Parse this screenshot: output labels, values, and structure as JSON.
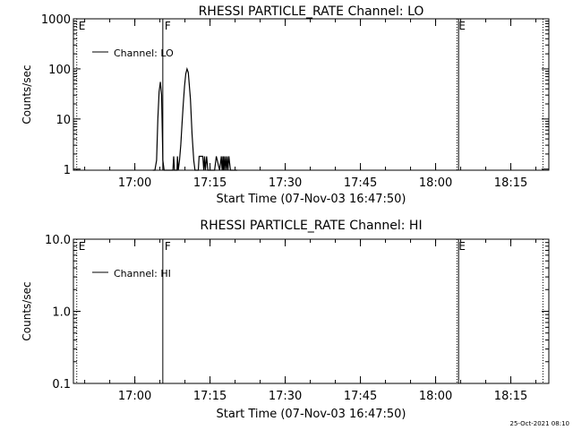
{
  "footer": {
    "timestamp": "25-Oct-2021 08:10"
  },
  "chart_data": [
    {
      "type": "line",
      "title": "RHESSI PARTICLE_RATE Channel: LO",
      "xlabel": "Start Time (07-Nov-03 16:47:50)",
      "ylabel": "Counts/sec",
      "y_scale": "log",
      "xlim": [
        0,
        4500
      ],
      "ylim": [
        0.95,
        1000
      ],
      "x_ticks": [
        {
          "t": 735,
          "label": "17:00"
        },
        {
          "t": 1635,
          "label": "17:15"
        },
        {
          "t": 2535,
          "label": "17:30"
        },
        {
          "t": 3435,
          "label": "17:45"
        },
        {
          "t": 4335,
          "label": "18:00"
        },
        {
          "t": 5235,
          "label": "18:15"
        }
      ],
      "y_ticks": [
        {
          "v": 1,
          "label": "1"
        },
        {
          "v": 10,
          "label": "10"
        },
        {
          "v": 100,
          "label": "100"
        },
        {
          "v": 1000,
          "label": "1000"
        }
      ],
      "legend": {
        "label": "Channel: LO",
        "placement": "top-left"
      },
      "markers": [
        {
          "t": 40,
          "label": "E",
          "style": "dotted"
        },
        {
          "t": 1070,
          "label": "F",
          "style": "solid"
        },
        {
          "t": 4590,
          "label": "E",
          "style": "dotted"
        },
        {
          "t": 4610,
          "label": "",
          "style": "solid"
        },
        {
          "t": 5620,
          "label": "",
          "style": "dotted"
        }
      ],
      "series": [
        {
          "x": [
            950,
            975,
            995,
            1010,
            1025,
            1040,
            1055,
            1070,
            1085,
            1190,
            1200,
            1210,
            1220,
            1240,
            1245,
            1255,
            1270,
            1285,
            1300,
            1315,
            1330,
            1345,
            1360,
            1375,
            1400,
            1420,
            1440,
            1455,
            1470,
            1485,
            1495,
            1505,
            1515,
            1525,
            1535,
            1548,
            1560,
            1570,
            1580,
            1595,
            1610,
            1650,
            1690,
            1710,
            1750,
            1770,
            1780,
            1790,
            1795,
            1800,
            1810,
            1820,
            1830,
            1840,
            1850,
            1860,
            1880,
            1910,
            1960
          ],
          "y": [
            0.95,
            0.95,
            1.5,
            10,
            35,
            55,
            30,
            1.5,
            0.95,
            0.95,
            1.8,
            0.95,
            0.95,
            0.95,
            1.8,
            0.95,
            1.5,
            3,
            8,
            20,
            45,
            80,
            100,
            85,
            25,
            5,
            1.5,
            0.95,
            0.95,
            0.95,
            0.95,
            1.8,
            1.8,
            1.8,
            1.8,
            1.8,
            0.95,
            1.8,
            0.95,
            1.8,
            0.95,
            0.95,
            0.95,
            1.8,
            0.95,
            1.8,
            0.95,
            1.8,
            0.95,
            1.8,
            0.95,
            1.8,
            0.95,
            1.8,
            0.95,
            1.8,
            0.95,
            0.95,
            0.95
          ]
        }
      ]
    },
    {
      "type": "line",
      "title": "RHESSI PARTICLE_RATE Channel: HI",
      "xlabel": "Start Time (07-Nov-03 16:47:50)",
      "ylabel": "Counts/sec",
      "y_scale": "log",
      "xlim": [
        0,
        4500
      ],
      "ylim": [
        0.1,
        10
      ],
      "x_ticks": [
        {
          "t": 735,
          "label": "17:00"
        },
        {
          "t": 1635,
          "label": "17:15"
        },
        {
          "t": 2535,
          "label": "17:30"
        },
        {
          "t": 3435,
          "label": "17:45"
        },
        {
          "t": 4335,
          "label": "18:00"
        },
        {
          "t": 5235,
          "label": "18:15"
        }
      ],
      "y_ticks": [
        {
          "v": 0.1,
          "label": "0.1"
        },
        {
          "v": 1,
          "label": "1.0"
        },
        {
          "v": 10,
          "label": "10.0"
        }
      ],
      "legend": {
        "label": "Channel: HI",
        "placement": "top-left"
      },
      "markers": [
        {
          "t": 40,
          "label": "E",
          "style": "dotted"
        },
        {
          "t": 1070,
          "label": "F",
          "style": "solid"
        },
        {
          "t": 4590,
          "label": "E",
          "style": "dotted"
        },
        {
          "t": 4610,
          "label": "",
          "style": "solid"
        },
        {
          "t": 5620,
          "label": "",
          "style": "dotted"
        }
      ],
      "series": [
        {
          "x": [],
          "y": []
        }
      ]
    }
  ]
}
